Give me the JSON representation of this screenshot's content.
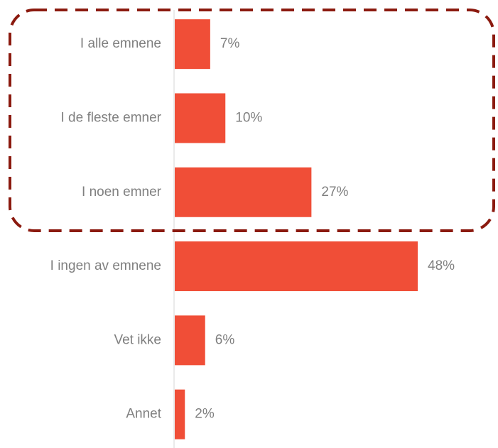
{
  "chart_data": {
    "type": "bar",
    "orientation": "horizontal",
    "categories": [
      "I alle emnene",
      "I de fleste emner",
      "I noen emner",
      "I ingen av emnene",
      "Vet ikke",
      "Annet"
    ],
    "values": [
      7,
      10,
      27,
      48,
      6,
      2
    ],
    "value_labels": [
      "7%",
      "10%",
      "27%",
      "48%",
      "6%",
      "2%"
    ],
    "color": "#f04e37"
  }
}
